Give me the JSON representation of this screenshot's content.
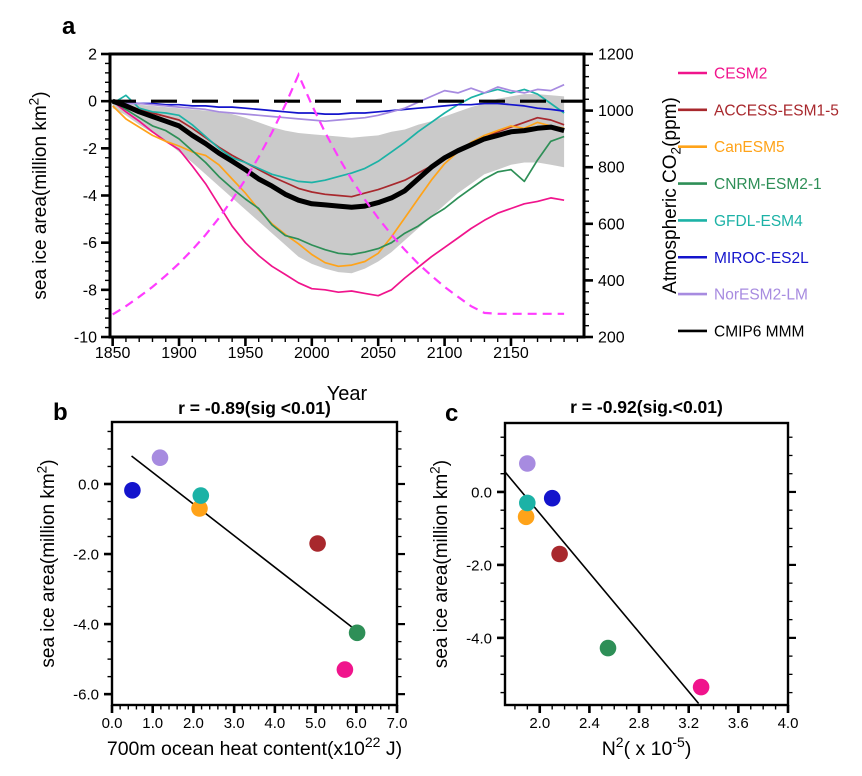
{
  "chart_data": [
    {
      "id": "a",
      "type": "line",
      "panel_label": "a",
      "xlabel": "Year",
      "ylabel_parts": [
        {
          "t": "sea ice area(million km"
        },
        {
          "t": "2",
          "sup": true
        },
        {
          "t": ")"
        }
      ],
      "ylabel_right_parts": [
        {
          "t": "Atmospheric CO"
        },
        {
          "t": "2",
          "sub": true
        },
        {
          "t": "(ppm)"
        }
      ],
      "xlim": [
        1848,
        2205
      ],
      "ylim": [
        -10,
        2
      ],
      "ylim_right": [
        200,
        1200
      ],
      "xticks": {
        "values": [
          1850,
          1900,
          1950,
          2000,
          2050,
          2100,
          2150
        ],
        "labels": [
          "1850",
          "1900",
          "1950",
          "2000",
          "2050",
          "2100",
          "2150"
        ],
        "minor_step": 10
      },
      "yticks": {
        "values": [
          2,
          0,
          -2,
          -4,
          -6,
          -8,
          -10
        ],
        "labels": [
          "2",
          "0",
          "-2",
          "-4",
          "-6",
          "-8",
          "-10"
        ],
        "minor_step": 0.4
      },
      "yticks_right": {
        "values": [
          200,
          400,
          600,
          800,
          1000,
          1200
        ],
        "labels": [
          "200",
          "400",
          "600",
          "800",
          "1000",
          "1200"
        ],
        "minor_step": 40
      },
      "zero_line": {
        "y": 0,
        "color": "#000000"
      },
      "band": {
        "color": "#cacaca",
        "x0": 1850,
        "dx": 10,
        "upper": [
          0.1,
          -0.05,
          -0.15,
          -0.2,
          -0.25,
          -0.3,
          -0.35,
          -0.4,
          -0.45,
          -0.55,
          -0.7,
          -0.9,
          -1.1,
          -1.25,
          -1.35,
          -1.4,
          -1.45,
          -1.5,
          -1.55,
          -1.5,
          -1.45,
          -1.3,
          -1.2,
          -1.0,
          -0.85,
          -0.65,
          -0.45,
          -0.25,
          -0.1,
          0.1,
          0.2,
          0.3,
          0.3,
          0.25,
          0.2
        ],
        "lower": [
          -0.3,
          -0.6,
          -1.0,
          -1.35,
          -1.7,
          -2.15,
          -2.6,
          -3.1,
          -3.6,
          -4.1,
          -4.6,
          -5.1,
          -5.6,
          -6.1,
          -6.6,
          -6.9,
          -7.1,
          -7.25,
          -7.3,
          -7.1,
          -6.8,
          -6.4,
          -5.9,
          -5.4,
          -4.9,
          -4.4,
          -3.9,
          -3.5,
          -3.1,
          -2.9,
          -2.7,
          -2.6,
          -2.6,
          -2.7,
          -2.8
        ]
      },
      "series": [
        {
          "name": "CESM2",
          "color": "#f0148c",
          "width": 1.7,
          "x0": 1850,
          "dx": 10,
          "y": [
            0,
            -0.45,
            -0.85,
            -1.3,
            -1.7,
            -2.05,
            -2.75,
            -3.5,
            -4.4,
            -5.3,
            -6.0,
            -6.55,
            -7.0,
            -7.35,
            -7.7,
            -7.95,
            -8.0,
            -8.1,
            -8.05,
            -8.15,
            -8.25,
            -8.0,
            -7.5,
            -7.05,
            -6.6,
            -6.2,
            -5.8,
            -5.4,
            -5.05,
            -4.75,
            -4.55,
            -4.35,
            -4.25,
            -4.1,
            -4.2
          ]
        },
        {
          "name": "ACCESS-ESM1-5",
          "color": "#a8282d",
          "width": 1.7,
          "x0": 1850,
          "dx": 10,
          "y": [
            0,
            -0.15,
            -0.35,
            -0.5,
            -0.65,
            -0.8,
            -1.15,
            -1.55,
            -1.95,
            -2.3,
            -2.6,
            -2.9,
            -3.2,
            -3.45,
            -3.7,
            -3.85,
            -3.95,
            -4.0,
            -4.05,
            -3.9,
            -3.75,
            -3.55,
            -3.35,
            -3.05,
            -2.75,
            -2.45,
            -2.15,
            -1.85,
            -1.55,
            -1.3,
            -1.1,
            -0.9,
            -0.7,
            -0.8,
            -1.0
          ]
        },
        {
          "name": "CanESM5",
          "color": "#ffa319",
          "width": 1.7,
          "x0": 1850,
          "dx": 10,
          "y": [
            -0.2,
            -0.75,
            -1.1,
            -1.45,
            -1.7,
            -1.9,
            -2.15,
            -2.3,
            -2.7,
            -3.3,
            -3.9,
            -4.6,
            -5.2,
            -5.65,
            -6.05,
            -6.5,
            -6.85,
            -7.0,
            -6.95,
            -6.8,
            -6.45,
            -5.75,
            -4.95,
            -4.15,
            -3.35,
            -2.65,
            -2.15,
            -1.75,
            -1.45,
            -1.25,
            -1.05,
            -1.15,
            -0.9,
            -1.05,
            -1.15
          ]
        },
        {
          "name": "CNRM-ESM2-1",
          "color": "#2e8f57",
          "width": 1.7,
          "x0": 1850,
          "dx": 10,
          "y": [
            0,
            -0.35,
            -0.7,
            -1.05,
            -1.25,
            -1.6,
            -2.1,
            -2.6,
            -3.2,
            -3.7,
            -4.15,
            -4.55,
            -5.25,
            -5.7,
            -5.85,
            -6.1,
            -6.3,
            -6.45,
            -6.5,
            -6.4,
            -6.25,
            -6.0,
            -5.6,
            -5.3,
            -4.9,
            -4.55,
            -4.1,
            -3.7,
            -3.3,
            -3.0,
            -2.9,
            -3.4,
            -2.5,
            -1.7,
            -1.5
          ]
        },
        {
          "name": "GFDL-ESM4",
          "color": "#1cb2a6",
          "width": 1.7,
          "x0": 1850,
          "dx": 10,
          "y": [
            -0.1,
            0.25,
            -0.3,
            -0.45,
            -0.5,
            -0.6,
            -1.0,
            -1.5,
            -2.0,
            -2.4,
            -2.6,
            -2.85,
            -3.1,
            -3.25,
            -3.4,
            -3.45,
            -3.35,
            -3.2,
            -3.05,
            -2.85,
            -2.55,
            -2.15,
            -1.75,
            -1.3,
            -0.9,
            -0.5,
            -0.15,
            0.15,
            0.35,
            0.5,
            0.35,
            0.5,
            0.3,
            -0.1,
            -0.5
          ]
        },
        {
          "name": "MIROC-ES2L",
          "color": "#1414cc",
          "width": 1.7,
          "x0": 1850,
          "dx": 10,
          "y": [
            0,
            -0.05,
            -0.1,
            -0.1,
            -0.15,
            -0.15,
            -0.2,
            -0.2,
            -0.25,
            -0.25,
            -0.3,
            -0.35,
            -0.4,
            -0.45,
            -0.5,
            -0.5,
            -0.55,
            -0.55,
            -0.5,
            -0.5,
            -0.45,
            -0.4,
            -0.35,
            -0.3,
            -0.25,
            -0.2,
            -0.15,
            -0.15,
            -0.1,
            -0.1,
            -0.15,
            -0.2,
            -0.3,
            -0.35,
            -0.42
          ]
        },
        {
          "name": "NorESM2-LM",
          "color": "#a78be0",
          "width": 1.7,
          "x0": 1850,
          "dx": 10,
          "y": [
            0,
            -0.1,
            -0.1,
            -0.15,
            -0.2,
            -0.25,
            -0.3,
            -0.35,
            -0.45,
            -0.5,
            -0.55,
            -0.6,
            -0.65,
            -0.7,
            -0.75,
            -0.8,
            -0.85,
            -0.8,
            -0.75,
            -0.7,
            -0.6,
            -0.45,
            -0.3,
            -0.05,
            0.2,
            0.45,
            0.35,
            0.55,
            0.35,
            0.6,
            0.45,
            0.35,
            0.5,
            0.45,
            0.7
          ]
        },
        {
          "name": "CMIP6 MMM",
          "color": "#000000",
          "width": 5,
          "x0": 1850,
          "dx": 10,
          "y": [
            0,
            -0.2,
            -0.45,
            -0.65,
            -0.85,
            -1.05,
            -1.45,
            -1.8,
            -2.2,
            -2.55,
            -2.9,
            -3.3,
            -3.6,
            -3.95,
            -4.2,
            -4.35,
            -4.4,
            -4.45,
            -4.5,
            -4.45,
            -4.3,
            -4.1,
            -3.8,
            -3.3,
            -2.8,
            -2.4,
            -2.1,
            -1.85,
            -1.6,
            -1.45,
            -1.3,
            -1.25,
            -1.15,
            -1.1,
            -1.25
          ]
        }
      ],
      "co2_series": {
        "name": "Atmospheric CO2 pathway",
        "color": "#ff3cff",
        "width": 2.2,
        "dash": "9 6",
        "x0": 1850,
        "dx": 10,
        "y_ppm": [
          280,
          309,
          342,
          377,
          417,
          460,
          508,
          561,
          620,
          685,
          757,
          836,
          923,
          1020,
          1127,
          1020,
          923,
          836,
          757,
          685,
          620,
          561,
          508,
          460,
          417,
          377,
          342,
          309,
          285,
          282,
          282,
          282,
          282,
          282,
          282
        ]
      },
      "legend": [
        {
          "label": "CESM2",
          "color": "#f0148c"
        },
        {
          "label": "ACCESS-ESM1-5",
          "color": "#a8282d"
        },
        {
          "label": "CanESM5",
          "color": "#ffa319"
        },
        {
          "label": "CNRM-ESM2-1",
          "color": "#2e8f57"
        },
        {
          "label": "GFDL-ESM4",
          "color": "#1cb2a6"
        },
        {
          "label": "MIROC-ES2L",
          "color": "#1414cc"
        },
        {
          "label": "NorESM2-LM",
          "color": "#a78be0"
        },
        {
          "label": "CMIP6 MMM",
          "color": "#000000"
        }
      ]
    },
    {
      "id": "b",
      "type": "scatter",
      "panel_label": "b",
      "title": "r = -0.89(sig <0.01)",
      "xlabel_parts": [
        {
          "t": "700m ocean heat content(x10"
        },
        {
          "t": "22",
          "sup": true
        },
        {
          "t": " J)"
        }
      ],
      "ylabel_parts": [
        {
          "t": "sea ice area(million km"
        },
        {
          "t": "2",
          "sup": true
        },
        {
          "t": ")"
        }
      ],
      "xlim": [
        0,
        7
      ],
      "ylim": [
        -6.31,
        1.77
      ],
      "xticks": {
        "values": [
          0,
          1,
          2,
          3,
          4,
          5,
          6,
          7
        ],
        "labels": [
          "0.0",
          "1.0",
          "2.0",
          "3.0",
          "4.0",
          "5.0",
          "6.0",
          "7.0"
        ],
        "minor_step": 0.2
      },
      "yticks": {
        "values": [
          0,
          -2,
          -4,
          -6
        ],
        "labels": [
          "0.0",
          "-2.0",
          "-4.0",
          "-6.0"
        ],
        "minor_step": 0.5
      },
      "fit_line": {
        "x1": 0.48,
        "y1": 0.8,
        "x2": 6.02,
        "y2": -4.2
      },
      "points": [
        {
          "model": "CESM2",
          "color": "#f0148c",
          "x": 5.72,
          "y": -5.3
        },
        {
          "model": "ACCESS-ESM1-5",
          "color": "#a8282d",
          "x": 5.05,
          "y": -1.7
        },
        {
          "model": "CanESM5",
          "color": "#ffa319",
          "x": 2.15,
          "y": -0.7
        },
        {
          "model": "CNRM-ESM2-1",
          "color": "#2e8f57",
          "x": 6.02,
          "y": -4.25
        },
        {
          "model": "GFDL-ESM4",
          "color": "#1cb2a6",
          "x": 2.18,
          "y": -0.33
        },
        {
          "model": "MIROC-ES2L",
          "color": "#1414cc",
          "x": 0.5,
          "y": -0.18
        },
        {
          "model": "NorESM2-LM",
          "color": "#a78be0",
          "x": 1.18,
          "y": 0.75
        }
      ]
    },
    {
      "id": "c",
      "type": "scatter",
      "panel_label": "c",
      "title": "r = -0.92(sig.<0.01)",
      "xlabel_parts": [
        {
          "t": "N"
        },
        {
          "t": "2",
          "sup": true
        },
        {
          "t": "( x 10"
        },
        {
          "t": "-5",
          "sup": true
        },
        {
          "t": ")"
        }
      ],
      "ylabel_parts": [
        {
          "t": "sea ice area(million km"
        },
        {
          "t": "2",
          "sup": true
        },
        {
          "t": ")"
        }
      ],
      "xlim": [
        1.72,
        4.0
      ],
      "ylim": [
        -5.84,
        1.89
      ],
      "xticks": {
        "values": [
          2.0,
          2.4,
          2.8,
          3.2,
          3.6,
          4.0
        ],
        "labels": [
          "2.0",
          "2.4",
          "2.8",
          "3.2",
          "3.6",
          "4.0"
        ],
        "minor_step": 0.1
      },
      "yticks": {
        "values": [
          0,
          -2,
          -4
        ],
        "labels": [
          "0.0",
          "-2.0",
          "-4.0"
        ],
        "minor_step": 0.5
      },
      "fit_line": {
        "x1": 1.72,
        "y1": 0.55,
        "x2": 3.28,
        "y2": -5.8
      },
      "points": [
        {
          "model": "CESM2",
          "color": "#f0148c",
          "x": 3.3,
          "y": -5.35
        },
        {
          "model": "ACCESS-ESM1-5",
          "color": "#a8282d",
          "x": 2.16,
          "y": -1.7
        },
        {
          "model": "CanESM5",
          "color": "#ffa319",
          "x": 1.89,
          "y": -0.68
        },
        {
          "model": "CNRM-ESM2-1",
          "color": "#2e8f57",
          "x": 2.55,
          "y": -4.28
        },
        {
          "model": "GFDL-ESM4",
          "color": "#1cb2a6",
          "x": 1.9,
          "y": -0.3
        },
        {
          "model": "MIROC-ES2L",
          "color": "#1414cc",
          "x": 2.1,
          "y": -0.17
        },
        {
          "model": "NorESM2-LM",
          "color": "#a78be0",
          "x": 1.9,
          "y": 0.78
        }
      ]
    }
  ]
}
